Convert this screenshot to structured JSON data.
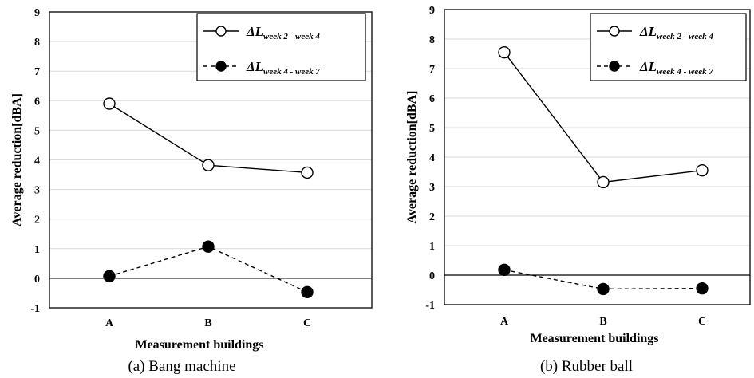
{
  "chart_data": [
    {
      "type": "line",
      "caption": "(a) Bang machine",
      "xlabel": "Measurement buildings",
      "ylabel": "Average reduction[dBA]",
      "categories": [
        "A",
        "B",
        "C"
      ],
      "ylim": [
        -1,
        9
      ],
      "yticks": [
        -1,
        0,
        1,
        2,
        3,
        4,
        5,
        6,
        7,
        8,
        9
      ],
      "grid": true,
      "legend_position": "top-right",
      "series": [
        {
          "name": "ΔL",
          "name_subscript": "week 2 - week 4",
          "values": [
            5.9,
            3.82,
            3.57
          ],
          "line_style": "solid",
          "marker": "open-circle"
        },
        {
          "name": "ΔL",
          "name_subscript": "week 4 - week 7",
          "values": [
            0.07,
            1.07,
            -0.47
          ],
          "line_style": "dashed",
          "marker": "filled-circle"
        }
      ]
    },
    {
      "type": "line",
      "caption": "(b) Rubber ball",
      "xlabel": "Measurement buildings",
      "ylabel": "Average reduction[dBA]",
      "categories": [
        "A",
        "B",
        "C"
      ],
      "ylim": [
        -1,
        9
      ],
      "yticks": [
        -1,
        0,
        1,
        2,
        3,
        4,
        5,
        6,
        7,
        8,
        9
      ],
      "grid": true,
      "legend_position": "top-right",
      "series": [
        {
          "name": "ΔL",
          "name_subscript": "week 2 - week 4",
          "values": [
            7.55,
            3.15,
            3.55
          ],
          "line_style": "solid",
          "marker": "open-circle"
        },
        {
          "name": "ΔL",
          "name_subscript": "week 4 - week 7",
          "values": [
            0.18,
            -0.47,
            -0.45
          ],
          "line_style": "dashed",
          "marker": "filled-circle"
        }
      ]
    }
  ]
}
